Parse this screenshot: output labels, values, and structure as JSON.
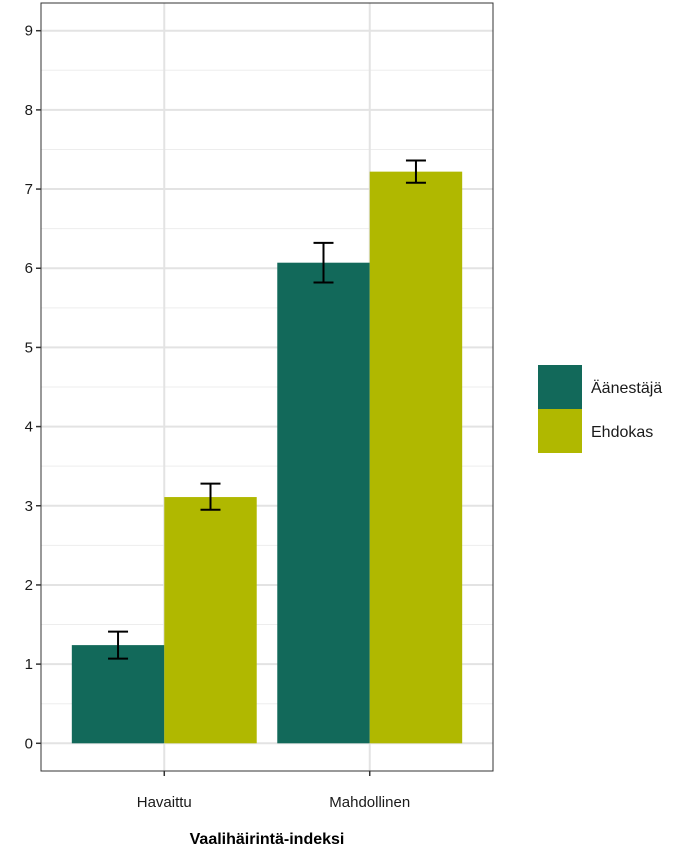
{
  "chart_data": {
    "type": "bar",
    "xlabel": "Vaalihäirintä-indeksi",
    "ylabel": "",
    "ylim": [
      -0.35,
      9.35
    ],
    "yticks": [
      0,
      1,
      2,
      3,
      4,
      5,
      6,
      7,
      8,
      9
    ],
    "categories": [
      "Havaittu",
      "Mahdollinen"
    ],
    "series": [
      {
        "name": "Äänestäjä",
        "color": "#12695a",
        "values": [
          1.24,
          6.07
        ],
        "err_low": [
          1.07,
          5.82
        ],
        "err_high": [
          1.41,
          6.32
        ]
      },
      {
        "name": "Ehdokas",
        "color": "#b0b800",
        "values": [
          3.11,
          7.22
        ],
        "err_low": [
          2.95,
          7.08
        ],
        "err_high": [
          3.28,
          7.36
        ]
      }
    ],
    "grid": true,
    "legend": "right"
  }
}
